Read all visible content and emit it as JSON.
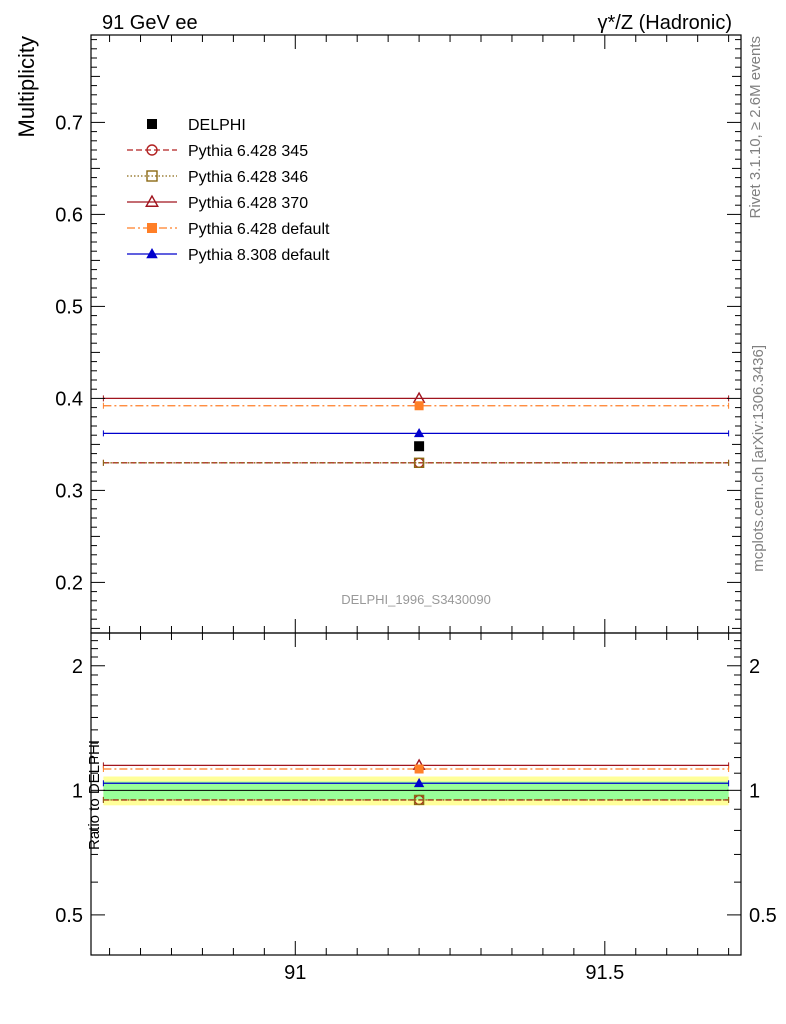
{
  "header": {
    "left_title": "91 GeV ee",
    "right_title": "γ*/Z (Hadronic)"
  },
  "side_labels": {
    "rivet": "Rivet 3.1.10, ≥ 2.6M events",
    "mcplots": "mcplots.cern.ch [arXiv:1306.3436]"
  },
  "analysis_label": "DELPHI_1996_S3430090",
  "chart_data": [
    {
      "type": "scatter",
      "panel": "main",
      "ylabel": "Multiplicity",
      "xlim": [
        90.67,
        91.72
      ],
      "ylim": [
        0.145,
        0.795
      ],
      "y_ticks": [
        0.2,
        0.3,
        0.4,
        0.5,
        0.6,
        0.7
      ],
      "y_tick_labels": [
        "0.2",
        "0.3",
        "0.4",
        "0.5",
        "0.6",
        "0.7"
      ],
      "x_bin": [
        90.69,
        91.7
      ],
      "x_center": 91.2,
      "legend_placement": "top-left",
      "series": [
        {
          "name": "DELPHI",
          "marker": "filled-square",
          "line": "none",
          "color": "#000000",
          "y": 0.348
        },
        {
          "name": "Pythia 6.428 345",
          "marker": "open-circle",
          "line": "dashed",
          "color": "#b22222",
          "y": 0.33
        },
        {
          "name": "Pythia 6.428 346",
          "marker": "open-square",
          "line": "dotted",
          "color": "#8b6914",
          "y": 0.33
        },
        {
          "name": "Pythia 6.428 370",
          "marker": "open-triangle",
          "line": "solid",
          "color": "#a0141e",
          "y": 0.4
        },
        {
          "name": "Pythia 6.428 default",
          "marker": "filled-square",
          "line": "dashdot",
          "color": "#ff7f27",
          "y": 0.392
        },
        {
          "name": "Pythia 8.308 default",
          "marker": "filled-triangle",
          "line": "solid",
          "color": "#0000cc",
          "y": 0.362
        }
      ]
    },
    {
      "type": "scatter",
      "panel": "ratio",
      "ylabel": "Ratio to DELPHI",
      "log_y": true,
      "xlim": [
        90.67,
        91.72
      ],
      "ylim": [
        0.4,
        2.4
      ],
      "y_ticks": [
        0.5,
        1,
        2
      ],
      "y_tick_labels": [
        "0.5",
        "1",
        "2"
      ],
      "x_ticks": [
        91,
        91.5
      ],
      "x_tick_labels": [
        "91",
        "91.5"
      ],
      "bands": [
        {
          "name": "data-uncertainty-outer",
          "color": "#ffff99",
          "low": 0.92,
          "high": 1.08
        },
        {
          "name": "data-uncertainty-inner",
          "color": "#99ff99",
          "low": 0.95,
          "high": 1.05
        }
      ],
      "series": [
        {
          "name": "Pythia 6.428 345",
          "color": "#b22222",
          "y": 0.948
        },
        {
          "name": "Pythia 6.428 346",
          "color": "#8b6914",
          "y": 0.948
        },
        {
          "name": "Pythia 6.428 370",
          "color": "#a0141e",
          "y": 1.149
        },
        {
          "name": "Pythia 6.428 default",
          "color": "#ff7f27",
          "y": 1.126
        },
        {
          "name": "Pythia 8.308 default",
          "color": "#0000cc",
          "y": 1.04
        }
      ]
    }
  ]
}
